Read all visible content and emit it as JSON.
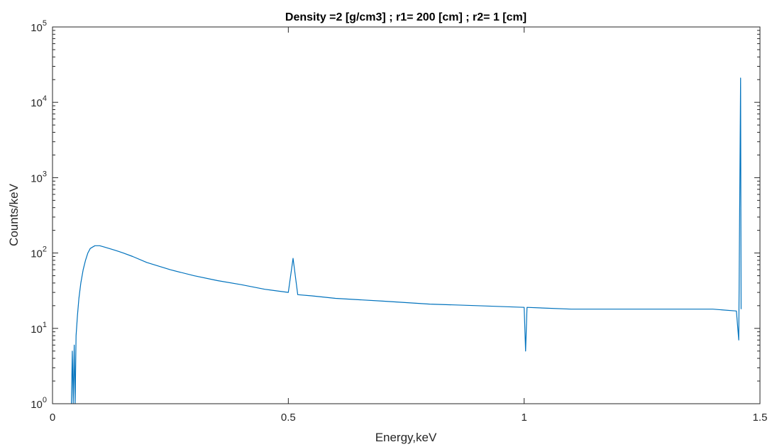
{
  "chart_data": {
    "type": "line",
    "title": "Density =2 [g/cm3] ; r1= 200 [cm]  ; r2= 1 [cm]",
    "xlabel": "Energy,keV",
    "ylabel": "Counts/keV",
    "xlim": [
      0,
      1.5
    ],
    "ylim": [
      1,
      100000
    ],
    "yscale": "log",
    "grid": false,
    "x_ticks": [
      {
        "value": 0,
        "label": "0"
      },
      {
        "value": 0.5,
        "label": "0.5"
      },
      {
        "value": 1,
        "label": "1"
      },
      {
        "value": 1.5,
        "label": "1.5"
      }
    ],
    "y_ticks": [
      {
        "value": 1,
        "base": "10",
        "exp": "0"
      },
      {
        "value": 10,
        "base": "10",
        "exp": "1"
      },
      {
        "value": 100,
        "base": "10",
        "exp": "2"
      },
      {
        "value": 1000,
        "base": "10",
        "exp": "3"
      },
      {
        "value": 10000,
        "base": "10",
        "exp": "4"
      },
      {
        "value": 100000,
        "base": "10",
        "exp": "5"
      }
    ],
    "line_color": "#0072bd",
    "series": [
      {
        "x": [
          0.04,
          0.042,
          0.044,
          0.046,
          0.048,
          0.05,
          0.053,
          0.056,
          0.06,
          0.065,
          0.07,
          0.075,
          0.08,
          0.085,
          0.09,
          0.1,
          0.11,
          0.12,
          0.13,
          0.14,
          0.15,
          0.17,
          0.2,
          0.25,
          0.3,
          0.35,
          0.4,
          0.45,
          0.5,
          0.51,
          0.52,
          0.55,
          0.6,
          0.7,
          0.8,
          0.9,
          1.0,
          1.003,
          1.006,
          1.1,
          1.2,
          1.3,
          1.4,
          1.45,
          1.455,
          1.459,
          1.46
        ],
        "y": [
          1,
          5,
          1,
          6,
          1,
          8,
          15,
          25,
          40,
          60,
          80,
          100,
          115,
          120,
          125,
          125,
          120,
          115,
          110,
          105,
          100,
          90,
          75,
          60,
          50,
          43,
          38,
          33,
          30,
          85,
          28,
          27,
          25,
          23,
          21,
          20,
          19,
          5,
          19,
          18,
          18,
          18,
          18,
          17,
          7,
          21000,
          18
        ]
      }
    ]
  }
}
